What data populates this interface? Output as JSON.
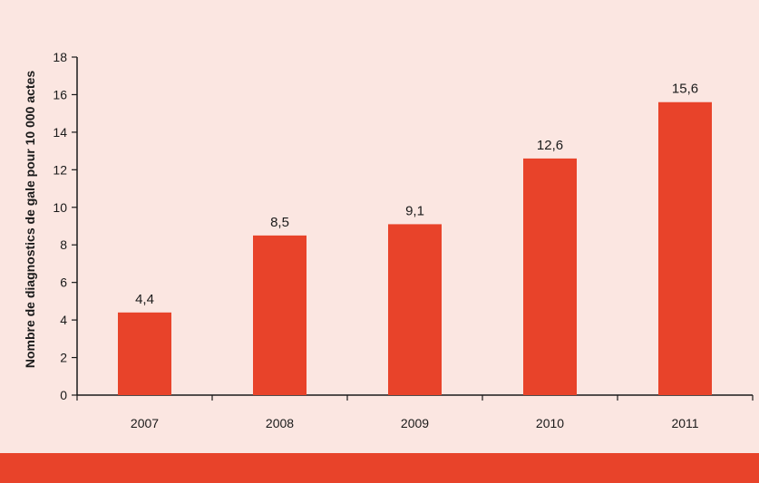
{
  "colors": {
    "background": "#fbe6e1",
    "bar": "#e8432a",
    "band": "#e8432a",
    "axis": "#1a1a1a",
    "text": "#1a1a1a"
  },
  "chart_data": {
    "type": "bar",
    "categories": [
      "2007",
      "2008",
      "2009",
      "2010",
      "2011"
    ],
    "values": [
      4.4,
      8.5,
      9.1,
      12.6,
      15.6
    ],
    "value_labels": [
      "4,4",
      "8,5",
      "9,1",
      "12,6",
      "15,6"
    ],
    "title": "",
    "xlabel": "",
    "ylabel": "Nombre de diagnostics de gale pour 10 000 actes",
    "ylim": [
      0,
      18
    ],
    "yticks": [
      0,
      2,
      4,
      6,
      8,
      10,
      12,
      14,
      16,
      18
    ],
    "grid": false,
    "legend": "none"
  }
}
